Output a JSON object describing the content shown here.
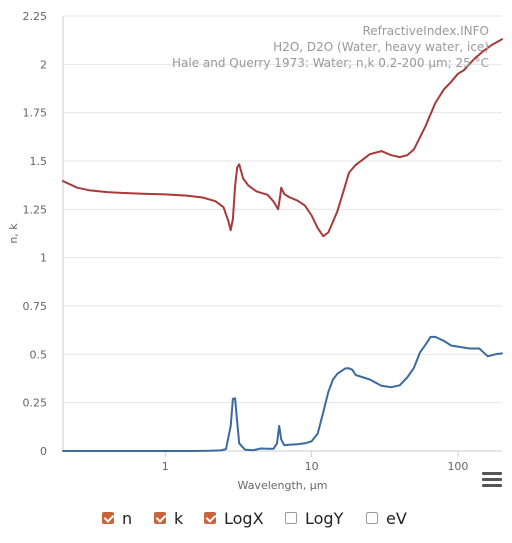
{
  "chart_data": {
    "type": "line",
    "credits": [
      "RefractiveIndex.INFO",
      "H2O, D2O (Water, heavy water, ice)",
      "Hale and Querry 1973: Water; n,k 0.2-200 µm; 25 °C"
    ],
    "xlabel": "Wavelength, µm",
    "ylabel": "n, k",
    "x_scale": "log",
    "xlim": [
      0.2,
      200
    ],
    "ylim": [
      0,
      2.25
    ],
    "x_ticks": [
      {
        "value": 1,
        "label": "1"
      },
      {
        "value": 10,
        "label": "10"
      },
      {
        "value": 100,
        "label": "100"
      }
    ],
    "y_ticks": [
      {
        "value": 0,
        "label": "0"
      },
      {
        "value": 0.25,
        "label": "0.25"
      },
      {
        "value": 0.5,
        "label": "0.5"
      },
      {
        "value": 0.75,
        "label": "0.75"
      },
      {
        "value": 1,
        "label": "1"
      },
      {
        "value": 1.25,
        "label": "1.25"
      },
      {
        "value": 1.5,
        "label": "1.5"
      },
      {
        "value": 1.75,
        "label": "1.75"
      },
      {
        "value": 2,
        "label": "2"
      },
      {
        "value": 2.25,
        "label": "2.25"
      }
    ],
    "grid": "horizontal",
    "series": [
      {
        "name": "n",
        "color": "#a83a3a",
        "points": [
          [
            0.2,
            1.396
          ],
          [
            0.25,
            1.362
          ],
          [
            0.3,
            1.349
          ],
          [
            0.4,
            1.339
          ],
          [
            0.5,
            1.335
          ],
          [
            0.7,
            1.331
          ],
          [
            1.0,
            1.327
          ],
          [
            1.4,
            1.321
          ],
          [
            1.8,
            1.311
          ],
          [
            2.2,
            1.292
          ],
          [
            2.5,
            1.261
          ],
          [
            2.7,
            1.188
          ],
          [
            2.8,
            1.142
          ],
          [
            2.9,
            1.2
          ],
          [
            3.0,
            1.371
          ],
          [
            3.1,
            1.467
          ],
          [
            3.2,
            1.483
          ],
          [
            3.4,
            1.41
          ],
          [
            3.7,
            1.373
          ],
          [
            4.2,
            1.343
          ],
          [
            5.0,
            1.325
          ],
          [
            5.5,
            1.29
          ],
          [
            5.9,
            1.25
          ],
          [
            6.1,
            1.32
          ],
          [
            6.2,
            1.362
          ],
          [
            6.5,
            1.33
          ],
          [
            7.0,
            1.314
          ],
          [
            8.0,
            1.295
          ],
          [
            9.0,
            1.27
          ],
          [
            10.0,
            1.218
          ],
          [
            11.0,
            1.153
          ],
          [
            12.0,
            1.111
          ],
          [
            13.0,
            1.13
          ],
          [
            15.0,
            1.24
          ],
          [
            17.0,
            1.375
          ],
          [
            18.0,
            1.44
          ],
          [
            20.0,
            1.48
          ],
          [
            25.0,
            1.535
          ],
          [
            30.0,
            1.551
          ],
          [
            35.0,
            1.53
          ],
          [
            40.0,
            1.52
          ],
          [
            45.0,
            1.53
          ],
          [
            50.0,
            1.56
          ],
          [
            60.0,
            1.68
          ],
          [
            70.0,
            1.8
          ],
          [
            80.0,
            1.87
          ],
          [
            90.0,
            1.91
          ],
          [
            100.0,
            1.951
          ],
          [
            110.0,
            1.97
          ],
          [
            130.0,
            2.03
          ],
          [
            150.0,
            2.07
          ],
          [
            170.0,
            2.1
          ],
          [
            200.0,
            2.13
          ]
        ]
      },
      {
        "name": "k",
        "color": "#3a6a9e",
        "points": [
          [
            0.2,
            0.0
          ],
          [
            0.5,
            0.0
          ],
          [
            1.0,
            0.0
          ],
          [
            1.5,
            0.0
          ],
          [
            2.0,
            0.001
          ],
          [
            2.4,
            0.003
          ],
          [
            2.6,
            0.01
          ],
          [
            2.8,
            0.13
          ],
          [
            2.9,
            0.27
          ],
          [
            3.0,
            0.272
          ],
          [
            3.1,
            0.15
          ],
          [
            3.2,
            0.04
          ],
          [
            3.5,
            0.007
          ],
          [
            4.0,
            0.004
          ],
          [
            4.5,
            0.013
          ],
          [
            5.0,
            0.012
          ],
          [
            5.5,
            0.012
          ],
          [
            5.8,
            0.04
          ],
          [
            6.0,
            0.13
          ],
          [
            6.2,
            0.06
          ],
          [
            6.5,
            0.03
          ],
          [
            7.0,
            0.032
          ],
          [
            8.0,
            0.035
          ],
          [
            9.0,
            0.04
          ],
          [
            10.0,
            0.05
          ],
          [
            11.0,
            0.09
          ],
          [
            12.0,
            0.199
          ],
          [
            13.0,
            0.305
          ],
          [
            14.0,
            0.37
          ],
          [
            15.0,
            0.4
          ],
          [
            17.0,
            0.427
          ],
          [
            18.0,
            0.428
          ],
          [
            19.0,
            0.42
          ],
          [
            20.0,
            0.393
          ],
          [
            25.0,
            0.37
          ],
          [
            30.0,
            0.338
          ],
          [
            35.0,
            0.33
          ],
          [
            40.0,
            0.34
          ],
          [
            45.0,
            0.38
          ],
          [
            50.0,
            0.43
          ],
          [
            55.0,
            0.51
          ],
          [
            60.0,
            0.55
          ],
          [
            65.0,
            0.59
          ],
          [
            70.0,
            0.59
          ],
          [
            80.0,
            0.57
          ],
          [
            90.0,
            0.545
          ],
          [
            100.0,
            0.54
          ],
          [
            120.0,
            0.53
          ],
          [
            140.0,
            0.53
          ],
          [
            160.0,
            0.49
          ],
          [
            180.0,
            0.5
          ],
          [
            200.0,
            0.505
          ]
        ]
      }
    ]
  },
  "controls": [
    {
      "label": "n",
      "checked": true
    },
    {
      "label": "k",
      "checked": true
    },
    {
      "label": "LogX",
      "checked": true
    },
    {
      "label": "LogY",
      "checked": false
    },
    {
      "label": "eV",
      "checked": false
    }
  ],
  "menu_icon": "hamburger-icon"
}
